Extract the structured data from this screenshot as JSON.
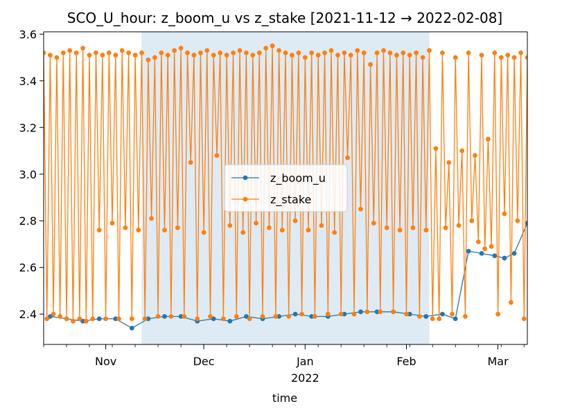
{
  "chart_data": {
    "type": "line",
    "title": "SCO_U_hour: z_boom_u vs z_stake  [2021-11-12 → 2022-02-08]",
    "xlabel": "time",
    "ylabel": "",
    "x_range": [
      "2021-10-13",
      "2022-03-10"
    ],
    "ylim": [
      2.27,
      3.61
    ],
    "y_ticks": [
      "2.4",
      "2.6",
      "2.8",
      "3.0",
      "3.2",
      "3.4",
      "3.6"
    ],
    "x_ticks": [
      {
        "date": "2021-11-01",
        "label": "Nov",
        "sublabel": ""
      },
      {
        "date": "2021-12-01",
        "label": "Dec",
        "sublabel": ""
      },
      {
        "date": "2022-01-01",
        "label": "Jan",
        "sublabel": "2022"
      },
      {
        "date": "2022-02-01",
        "label": "Feb",
        "sublabel": ""
      },
      {
        "date": "2022-03-01",
        "label": "Mar",
        "sublabel": ""
      }
    ],
    "highlight_span": [
      "2021-11-12",
      "2022-02-08"
    ],
    "legend_position": "center",
    "grid": false,
    "series": [
      {
        "name": "z_boom_u",
        "color": "#1f77b4",
        "marker": "circle",
        "points": [
          [
            "2021-10-15",
            2.39
          ],
          [
            "2021-10-20",
            2.38
          ],
          [
            "2021-10-25",
            2.37
          ],
          [
            "2021-10-30",
            2.38
          ],
          [
            "2021-11-04",
            2.38
          ],
          [
            "2021-11-09",
            2.34
          ],
          [
            "2021-11-14",
            2.38
          ],
          [
            "2021-11-19",
            2.39
          ],
          [
            "2021-11-24",
            2.39
          ],
          [
            "2021-11-29",
            2.37
          ],
          [
            "2021-12-04",
            2.38
          ],
          [
            "2021-12-09",
            2.37
          ],
          [
            "2021-12-14",
            2.39
          ],
          [
            "2021-12-19",
            2.38
          ],
          [
            "2021-12-24",
            2.39
          ],
          [
            "2021-12-29",
            2.4
          ],
          [
            "2022-01-03",
            2.39
          ],
          [
            "2022-01-08",
            2.39
          ],
          [
            "2022-01-13",
            2.4
          ],
          [
            "2022-01-18",
            2.41
          ],
          [
            "2022-01-23",
            2.41
          ],
          [
            "2022-01-28",
            2.41
          ],
          [
            "2022-02-02",
            2.4
          ],
          [
            "2022-02-07",
            2.39
          ],
          [
            "2022-02-12",
            2.4
          ],
          [
            "2022-02-16",
            2.38
          ],
          [
            "2022-02-20",
            2.67
          ],
          [
            "2022-02-24",
            2.66
          ],
          [
            "2022-02-28",
            2.65
          ],
          [
            "2022-03-03",
            2.64
          ],
          [
            "2022-03-06",
            2.66
          ],
          [
            "2022-03-10",
            2.79
          ]
        ]
      },
      {
        "name": "z_stake",
        "color": "#ff7f0e",
        "marker": "circle",
        "points": [
          [
            "2021-10-13",
            3.52
          ],
          [
            "2021-10-14",
            2.38
          ],
          [
            "2021-10-15",
            3.51
          ],
          [
            "2021-10-16",
            2.4
          ],
          [
            "2021-10-17",
            3.5
          ],
          [
            "2021-10-18",
            2.39
          ],
          [
            "2021-10-19",
            3.52
          ],
          [
            "2021-10-20",
            2.38
          ],
          [
            "2021-10-21",
            3.53
          ],
          [
            "2021-10-22",
            2.37
          ],
          [
            "2021-10-23",
            3.52
          ],
          [
            "2021-10-24",
            2.38
          ],
          [
            "2021-10-25",
            3.54
          ],
          [
            "2021-10-26",
            2.37
          ],
          [
            "2021-10-27",
            3.51
          ],
          [
            "2021-10-28",
            2.38
          ],
          [
            "2021-10-29",
            3.52
          ],
          [
            "2021-10-30",
            2.76
          ],
          [
            "2021-10-31",
            3.51
          ],
          [
            "2021-11-01",
            2.38
          ],
          [
            "2021-11-02",
            3.52
          ],
          [
            "2021-11-03",
            2.79
          ],
          [
            "2021-11-04",
            3.51
          ],
          [
            "2021-11-05",
            2.38
          ],
          [
            "2021-11-06",
            3.53
          ],
          [
            "2021-11-07",
            2.77
          ],
          [
            "2021-11-08",
            3.52
          ],
          [
            "2021-11-09",
            2.38
          ],
          [
            "2021-11-10",
            3.51
          ],
          [
            "2021-11-11",
            2.76
          ],
          [
            "2021-11-12",
            3.52
          ],
          [
            "2021-11-13",
            2.38
          ],
          [
            "2021-11-14",
            3.49
          ],
          [
            "2021-11-15",
            2.81
          ],
          [
            "2021-11-16",
            3.5
          ],
          [
            "2021-11-17",
            2.39
          ],
          [
            "2021-11-18",
            3.52
          ],
          [
            "2021-11-19",
            2.76
          ],
          [
            "2021-11-20",
            3.51
          ],
          [
            "2021-11-21",
            2.39
          ],
          [
            "2021-11-22",
            3.53
          ],
          [
            "2021-11-23",
            2.77
          ],
          [
            "2021-11-24",
            3.54
          ],
          [
            "2021-11-25",
            2.39
          ],
          [
            "2021-11-26",
            3.52
          ],
          [
            "2021-11-27",
            3.05
          ],
          [
            "2021-11-28",
            3.51
          ],
          [
            "2021-11-29",
            2.38
          ],
          [
            "2021-11-30",
            3.52
          ],
          [
            "2021-12-01",
            2.75
          ],
          [
            "2021-12-02",
            3.53
          ],
          [
            "2021-12-03",
            2.39
          ],
          [
            "2021-12-04",
            3.51
          ],
          [
            "2021-12-05",
            3.08
          ],
          [
            "2021-12-06",
            3.52
          ],
          [
            "2021-12-07",
            2.38
          ],
          [
            "2021-12-08",
            3.51
          ],
          [
            "2021-12-09",
            2.78
          ],
          [
            "2021-12-10",
            3.52
          ],
          [
            "2021-12-11",
            2.39
          ],
          [
            "2021-12-12",
            3.53
          ],
          [
            "2021-12-13",
            2.75
          ],
          [
            "2021-12-14",
            3.52
          ],
          [
            "2021-12-15",
            2.38
          ],
          [
            "2021-12-16",
            3.51
          ],
          [
            "2021-12-17",
            2.79
          ],
          [
            "2021-12-18",
            3.52
          ],
          [
            "2021-12-19",
            2.39
          ],
          [
            "2021-12-20",
            3.54
          ],
          [
            "2021-12-21",
            2.77
          ],
          [
            "2021-12-22",
            3.55
          ],
          [
            "2021-12-23",
            2.39
          ],
          [
            "2021-12-24",
            3.53
          ],
          [
            "2021-12-25",
            2.76
          ],
          [
            "2021-12-26",
            3.52
          ],
          [
            "2021-12-27",
            2.39
          ],
          [
            "2021-12-28",
            3.51
          ],
          [
            "2021-12-29",
            2.8
          ],
          [
            "2021-12-30",
            3.52
          ],
          [
            "2021-12-31",
            2.4
          ],
          [
            "2022-01-01",
            3.5
          ],
          [
            "2022-01-02",
            2.76
          ],
          [
            "2022-01-03",
            3.52
          ],
          [
            "2022-01-04",
            2.39
          ],
          [
            "2022-01-05",
            3.51
          ],
          [
            "2022-01-06",
            2.78
          ],
          [
            "2022-01-07",
            3.52
          ],
          [
            "2022-01-08",
            2.4
          ],
          [
            "2022-01-09",
            3.53
          ],
          [
            "2022-01-10",
            2.75
          ],
          [
            "2022-01-11",
            3.51
          ],
          [
            "2022-01-12",
            2.4
          ],
          [
            "2022-01-13",
            3.52
          ],
          [
            "2022-01-14",
            3.07
          ],
          [
            "2022-01-15",
            3.51
          ],
          [
            "2022-01-16",
            2.4
          ],
          [
            "2022-01-17",
            3.53
          ],
          [
            "2022-01-18",
            2.85
          ],
          [
            "2022-01-19",
            3.52
          ],
          [
            "2022-01-20",
            2.41
          ],
          [
            "2022-01-21",
            3.47
          ],
          [
            "2022-01-22",
            2.79
          ],
          [
            "2022-01-23",
            3.52
          ],
          [
            "2022-01-24",
            2.41
          ],
          [
            "2022-01-25",
            3.53
          ],
          [
            "2022-01-26",
            2.77
          ],
          [
            "2022-01-27",
            3.52
          ],
          [
            "2022-01-28",
            2.41
          ],
          [
            "2022-01-29",
            3.51
          ],
          [
            "2022-01-30",
            2.76
          ],
          [
            "2022-01-31",
            3.52
          ],
          [
            "2022-02-01",
            2.4
          ],
          [
            "2022-02-02",
            3.51
          ],
          [
            "2022-02-03",
            2.77
          ],
          [
            "2022-02-04",
            3.52
          ],
          [
            "2022-02-05",
            2.39
          ],
          [
            "2022-02-06",
            3.5
          ],
          [
            "2022-02-07",
            2.76
          ],
          [
            "2022-02-08",
            3.53
          ],
          [
            "2022-02-09",
            2.38
          ],
          [
            "2022-02-10",
            3.11
          ],
          [
            "2022-02-11",
            2.38
          ],
          [
            "2022-02-12",
            3.52
          ],
          [
            "2022-02-13",
            2.77
          ],
          [
            "2022-02-14",
            3.05
          ],
          [
            "2022-02-15",
            2.4
          ],
          [
            "2022-02-16",
            3.5
          ],
          [
            "2022-02-17",
            2.78
          ],
          [
            "2022-02-18",
            3.1
          ],
          [
            "2022-02-19",
            2.39
          ],
          [
            "2022-02-20",
            3.52
          ],
          [
            "2022-02-21",
            2.8
          ],
          [
            "2022-02-22",
            3.08
          ],
          [
            "2022-02-23",
            2.71
          ],
          [
            "2022-02-24",
            3.51
          ],
          [
            "2022-02-25",
            2.68
          ],
          [
            "2022-02-26",
            3.15
          ],
          [
            "2022-02-27",
            2.69
          ],
          [
            "2022-02-28",
            3.52
          ],
          [
            "2022-03-01",
            2.4
          ],
          [
            "2022-03-02",
            3.5
          ],
          [
            "2022-03-03",
            2.83
          ],
          [
            "2022-03-04",
            3.51
          ],
          [
            "2022-03-05",
            2.45
          ],
          [
            "2022-03-06",
            3.5
          ],
          [
            "2022-03-07",
            2.8
          ],
          [
            "2022-03-08",
            3.52
          ],
          [
            "2022-03-09",
            2.38
          ],
          [
            "2022-03-10",
            3.5
          ]
        ]
      }
    ]
  }
}
